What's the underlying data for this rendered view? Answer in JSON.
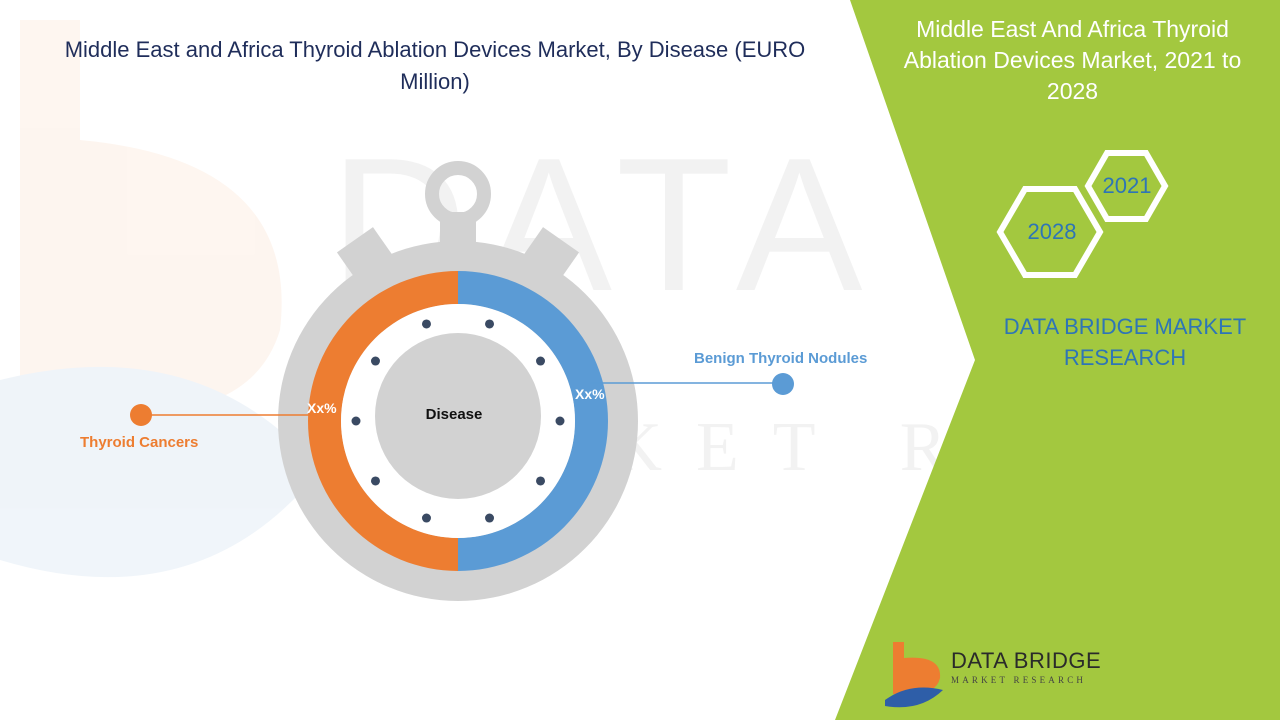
{
  "title": "Middle East and Africa Thyroid Ablation Devices Market, By Disease (EURO Million)",
  "side_panel": {
    "title": "Middle East And Africa Thyroid Ablation Devices Market, 2021 to 2028",
    "year_start": "2021",
    "year_end": "2028",
    "brand": "DATA BRIDGE MARKET RESEARCH"
  },
  "watermark": {
    "line1": "DATA BRIDGE",
    "line2": "MARKET RESEARCH"
  },
  "logo": {
    "name": "DATA BRIDGE",
    "tagline": "MARKET RESEARCH"
  },
  "colors": {
    "orange": "#ed7d31",
    "blue": "#5b9bd5",
    "green": "#a3c83f",
    "grey": "#d2d2d2",
    "title": "#1f2d5a"
  },
  "chart_data": {
    "type": "pie",
    "center_label": "Disease",
    "series": [
      {
        "name": "Benign Thyroid Nodules",
        "value": 50,
        "label": "Xx%",
        "color": "#5b9bd5"
      },
      {
        "name": "Thyroid Cancers",
        "value": 50,
        "label": "Xx%",
        "color": "#ed7d31"
      }
    ]
  }
}
